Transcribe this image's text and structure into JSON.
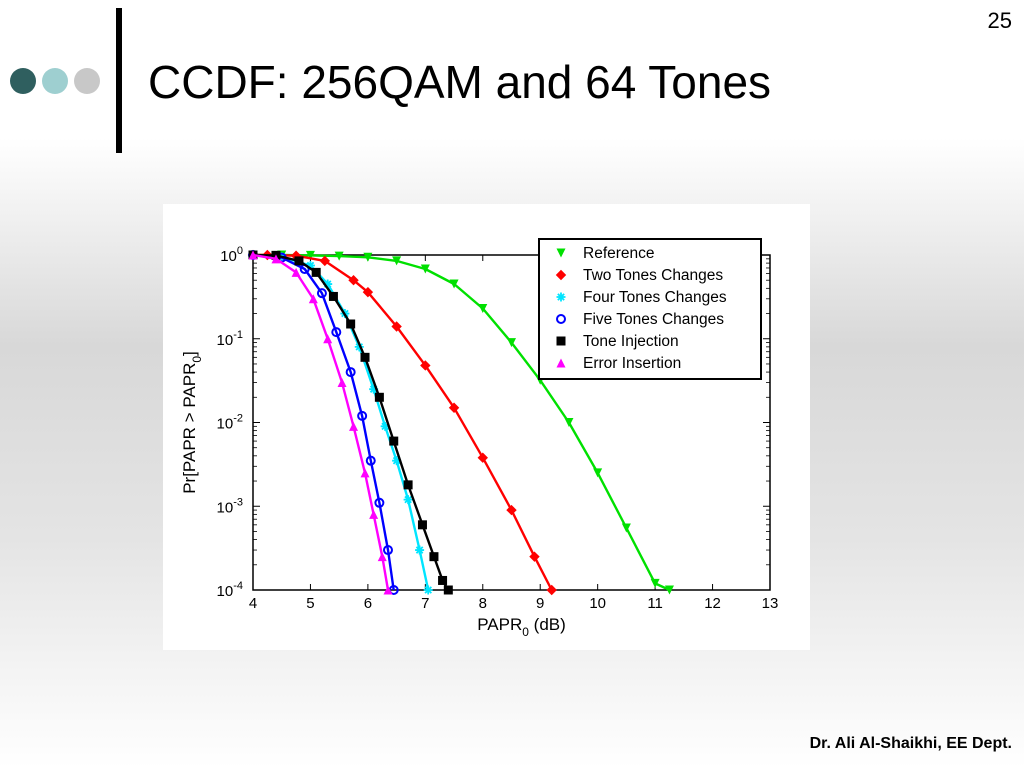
{
  "slide": {
    "number": "25",
    "title": "CCDF: 256QAM and 64 Tones",
    "footer": "Dr. Ali Al-Shaikhi, EE Dept.",
    "decoration_dot_colors": [
      "#2f5f5f",
      "#9ecfd0",
      "#c8c8c8"
    ]
  },
  "chart_data": {
    "type": "line",
    "xlabel_main": "PAPR",
    "xlabel_sub": "0",
    "xlabel_unit": "(dB)",
    "ylabel_main": "Pr[PAPR > PAPR",
    "ylabel_sub": "0",
    "ylabel_end": "]",
    "x_ticks": [
      "4",
      "5",
      "6",
      "7",
      "8",
      "9",
      "10",
      "11",
      "12",
      "13"
    ],
    "y_tick_base": "10",
    "y_ticks": [
      {
        "exp": "0",
        "value": 1
      },
      {
        "exp": "-1",
        "value": 0.1
      },
      {
        "exp": "-2",
        "value": 0.01
      },
      {
        "exp": "-3",
        "value": 0.001
      },
      {
        "exp": "-4",
        "value": 0.0001
      }
    ],
    "xlim": [
      4,
      13
    ],
    "ylim": [
      0.0001,
      1
    ],
    "y_scale": "log",
    "legend_position": "top-right",
    "series": [
      {
        "name": "Reference",
        "color": "#00e000",
        "marker": "triangle-down",
        "x": [
          4.0,
          4.5,
          5.0,
          5.5,
          6.0,
          6.5,
          7.0,
          7.5,
          8.0,
          8.5,
          9.0,
          9.5,
          10.0,
          10.5,
          11.0,
          11.25
        ],
        "y": [
          1.0,
          1.0,
          0.99,
          0.97,
          0.94,
          0.85,
          0.68,
          0.45,
          0.23,
          0.09,
          0.032,
          0.01,
          0.0025,
          0.00055,
          0.00012,
          0.0001
        ]
      },
      {
        "name": "Two Tones Changes",
        "color": "#ff0000",
        "marker": "diamond",
        "x": [
          4.0,
          4.25,
          4.75,
          5.25,
          5.75,
          6.0,
          6.5,
          7.0,
          7.5,
          8.0,
          8.5,
          8.9,
          9.2
        ],
        "y": [
          1.0,
          1.0,
          0.98,
          0.85,
          0.5,
          0.36,
          0.14,
          0.048,
          0.015,
          0.0038,
          0.0009,
          0.00025,
          0.0001
        ]
      },
      {
        "name": "Four Tones Changes",
        "color": "#00e5ff",
        "marker": "star",
        "x": [
          4.0,
          4.5,
          5.0,
          5.3,
          5.6,
          5.85,
          6.1,
          6.3,
          6.5,
          6.7,
          6.9,
          7.05
        ],
        "y": [
          1.0,
          0.95,
          0.75,
          0.45,
          0.2,
          0.08,
          0.025,
          0.009,
          0.0035,
          0.0012,
          0.0003,
          0.0001
        ]
      },
      {
        "name": "Five Tones Changes",
        "color": "#0000ff",
        "marker": "circle",
        "x": [
          4.0,
          4.5,
          4.9,
          5.2,
          5.45,
          5.7,
          5.9,
          6.05,
          6.2,
          6.35,
          6.45
        ],
        "y": [
          1.0,
          0.93,
          0.68,
          0.35,
          0.12,
          0.04,
          0.012,
          0.0035,
          0.0011,
          0.0003,
          0.0001
        ]
      },
      {
        "name": "Tone Injection",
        "color": "#000000",
        "marker": "square",
        "x": [
          4.0,
          4.4,
          4.8,
          5.1,
          5.4,
          5.7,
          5.95,
          6.2,
          6.45,
          6.7,
          6.95,
          7.15,
          7.3,
          7.4
        ],
        "y": [
          1.0,
          0.99,
          0.85,
          0.62,
          0.32,
          0.15,
          0.06,
          0.02,
          0.006,
          0.0018,
          0.0006,
          0.00025,
          0.00013,
          0.0001
        ]
      },
      {
        "name": "Error Insertion",
        "color": "#ff00ff",
        "marker": "triangle-up",
        "x": [
          4.0,
          4.4,
          4.75,
          5.05,
          5.3,
          5.55,
          5.75,
          5.95,
          6.1,
          6.25,
          6.35
        ],
        "y": [
          1.0,
          0.9,
          0.62,
          0.3,
          0.1,
          0.03,
          0.009,
          0.0025,
          0.0008,
          0.00025,
          0.0001
        ]
      }
    ]
  }
}
